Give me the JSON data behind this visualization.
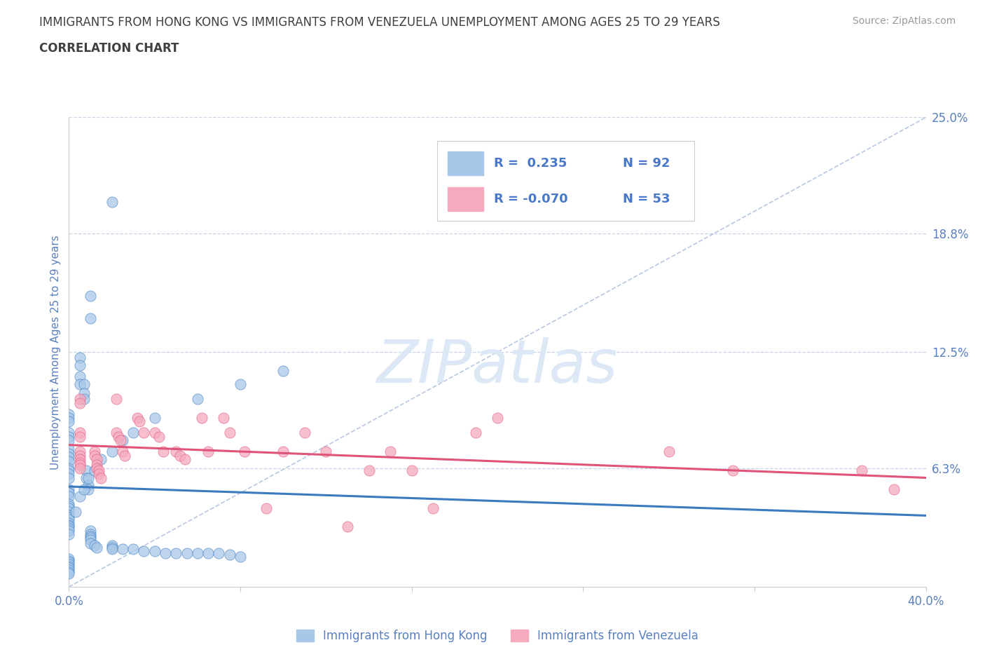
{
  "title_line1": "IMMIGRANTS FROM HONG KONG VS IMMIGRANTS FROM VENEZUELA UNEMPLOYMENT AMONG AGES 25 TO 29 YEARS",
  "title_line2": "CORRELATION CHART",
  "source_text": "Source: ZipAtlas.com",
  "ylabel": "Unemployment Among Ages 25 to 29 years",
  "xmin": 0.0,
  "xmax": 0.4,
  "ymin": 0.0,
  "ymax": 0.25,
  "ytick_vals": [
    0.063,
    0.125,
    0.188,
    0.25
  ],
  "ytick_labels": [
    "6.3%",
    "12.5%",
    "18.8%",
    "25.0%"
  ],
  "xtick_vals": [
    0.0,
    0.08,
    0.16,
    0.24,
    0.32,
    0.4
  ],
  "xlabels_show": {
    "0.0": "0.0%",
    "0.40": "40.0%"
  },
  "hk_color": "#a8c8e8",
  "ven_color": "#f5aabe",
  "hk_trend_color": "#3a7abf",
  "ven_trend_color": "#e0547a",
  "diag_color": "#b8c8e0",
  "watermark": "ZIPatlas",
  "legend_r_hk": "R =  0.235",
  "legend_n_hk": "N = 92",
  "legend_r_ven": "R = -0.070",
  "legend_n_ven": "N = 53",
  "hk_x": [
    0.02,
    0.01,
    0.01,
    0.005,
    0.005,
    0.005,
    0.005,
    0.007,
    0.007,
    0.007,
    0.0,
    0.0,
    0.0,
    0.0,
    0.0,
    0.0,
    0.0,
    0.0,
    0.0,
    0.0,
    0.0,
    0.0,
    0.0,
    0.0,
    0.008,
    0.008,
    0.009,
    0.009,
    0.0,
    0.0,
    0.0,
    0.0,
    0.0,
    0.0,
    0.0,
    0.0,
    0.0,
    0.0,
    0.0,
    0.0,
    0.0,
    0.0,
    0.0,
    0.0,
    0.0,
    0.01,
    0.01,
    0.01,
    0.01,
    0.01,
    0.01,
    0.012,
    0.013,
    0.02,
    0.02,
    0.02,
    0.025,
    0.03,
    0.035,
    0.04,
    0.045,
    0.05,
    0.055,
    0.06,
    0.065,
    0.07,
    0.075,
    0.08,
    0.0,
    0.0,
    0.0,
    0.0,
    0.0,
    0.0,
    0.0,
    0.0,
    0.0,
    0.003,
    0.005,
    0.007,
    0.009,
    0.012,
    0.015,
    0.02,
    0.025,
    0.03,
    0.04,
    0.06,
    0.08,
    0.1
  ],
  "hk_y": [
    0.205,
    0.155,
    0.143,
    0.122,
    0.118,
    0.112,
    0.108,
    0.108,
    0.103,
    0.1,
    0.092,
    0.09,
    0.088,
    0.082,
    0.08,
    0.078,
    0.073,
    0.071,
    0.069,
    0.067,
    0.063,
    0.062,
    0.06,
    0.058,
    0.062,
    0.058,
    0.054,
    0.052,
    0.052,
    0.05,
    0.05,
    0.048,
    0.044,
    0.043,
    0.042,
    0.04,
    0.038,
    0.037,
    0.036,
    0.034,
    0.033,
    0.032,
    0.031,
    0.03,
    0.028,
    0.03,
    0.028,
    0.027,
    0.026,
    0.025,
    0.023,
    0.022,
    0.021,
    0.022,
    0.021,
    0.02,
    0.02,
    0.02,
    0.019,
    0.019,
    0.018,
    0.018,
    0.018,
    0.018,
    0.018,
    0.018,
    0.017,
    0.016,
    0.015,
    0.014,
    0.013,
    0.012,
    0.011,
    0.01,
    0.009,
    0.008,
    0.007,
    0.04,
    0.048,
    0.052,
    0.058,
    0.062,
    0.068,
    0.072,
    0.078,
    0.082,
    0.09,
    0.1,
    0.108,
    0.115
  ],
  "ven_x": [
    0.005,
    0.005,
    0.005,
    0.005,
    0.005,
    0.005,
    0.005,
    0.005,
    0.005,
    0.005,
    0.012,
    0.012,
    0.013,
    0.013,
    0.013,
    0.014,
    0.014,
    0.015,
    0.022,
    0.022,
    0.023,
    0.024,
    0.025,
    0.026,
    0.032,
    0.033,
    0.035,
    0.04,
    0.042,
    0.044,
    0.05,
    0.052,
    0.054,
    0.062,
    0.065,
    0.072,
    0.075,
    0.082,
    0.092,
    0.1,
    0.11,
    0.12,
    0.13,
    0.14,
    0.15,
    0.16,
    0.17,
    0.19,
    0.2,
    0.28,
    0.31,
    0.37,
    0.385
  ],
  "ven_y": [
    0.1,
    0.098,
    0.082,
    0.08,
    0.072,
    0.07,
    0.068,
    0.066,
    0.065,
    0.063,
    0.072,
    0.07,
    0.068,
    0.065,
    0.063,
    0.062,
    0.06,
    0.058,
    0.1,
    0.082,
    0.08,
    0.078,
    0.072,
    0.07,
    0.09,
    0.088,
    0.082,
    0.082,
    0.08,
    0.072,
    0.072,
    0.07,
    0.068,
    0.09,
    0.072,
    0.09,
    0.082,
    0.072,
    0.042,
    0.072,
    0.082,
    0.072,
    0.032,
    0.062,
    0.072,
    0.062,
    0.042,
    0.082,
    0.09,
    0.072,
    0.062,
    0.062,
    0.052
  ],
  "background_color": "#ffffff",
  "grid_color": "#c8d4e8",
  "title_color": "#404040",
  "tick_label_color": "#5a80c0",
  "watermark_color": "#dce8f5",
  "legend_text_color": "#4a78c8"
}
